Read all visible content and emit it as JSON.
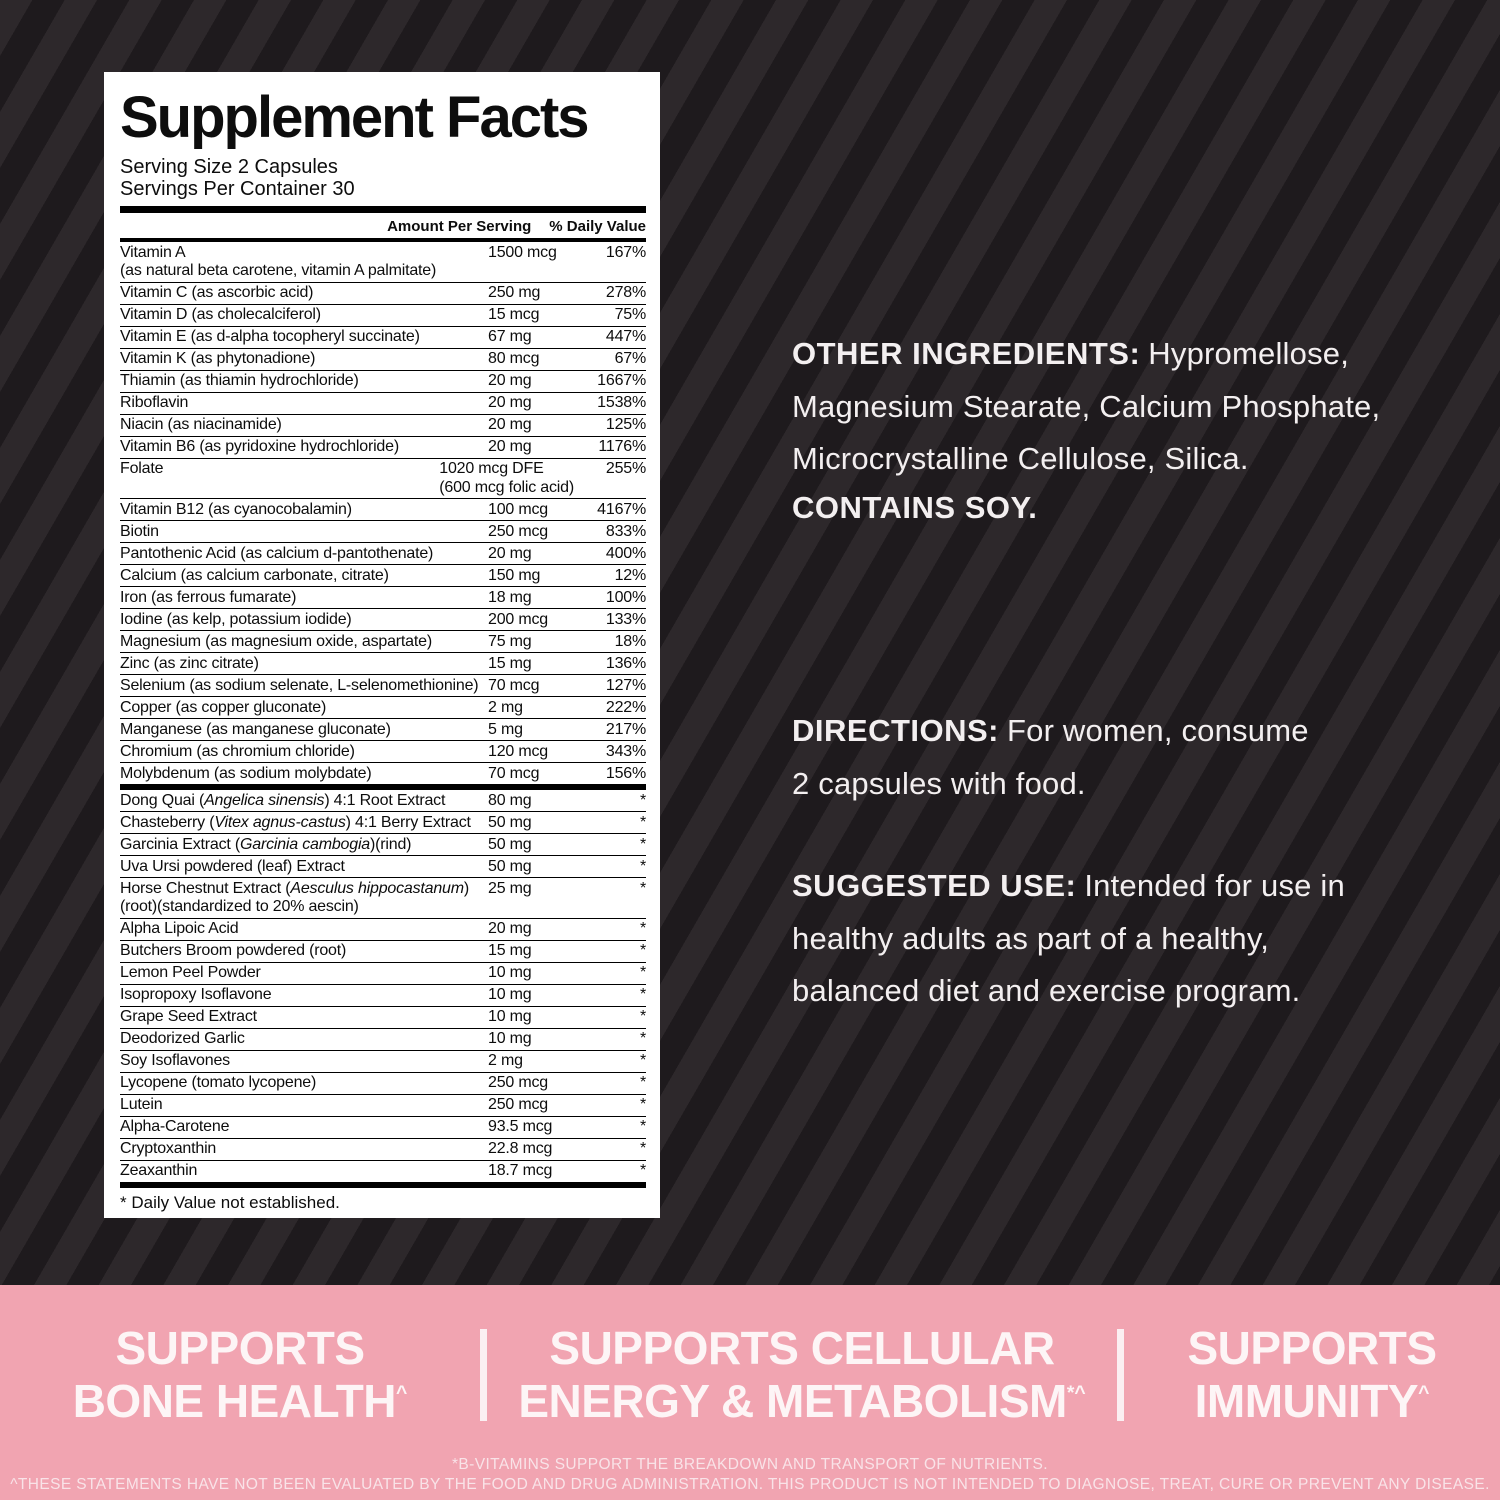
{
  "facts": {
    "title": "Supplement Facts",
    "serving_size": "Serving Size 2 Capsules",
    "servings_per_container": "Servings Per Container 30",
    "col_amount": "Amount Per Serving",
    "col_dv": "% Daily Value",
    "footnote": "* Daily Value not established.",
    "rows": [
      {
        "n": "Vitamin A",
        "n2": "(as natural beta carotene, vitamin A palmitate)",
        "a": "1500 mcg",
        "d": "167%"
      },
      {
        "n": "Vitamin C (as ascorbic acid)",
        "a": "250 mg",
        "d": "278%"
      },
      {
        "n": "Vitamin D (as cholecalciferol)",
        "a": "15 mcg",
        "d": "75%"
      },
      {
        "n": "Vitamin E (as d-alpha tocopheryl succinate)",
        "a": "67 mg",
        "d": "447%"
      },
      {
        "n": "Vitamin K (as phytonadione)",
        "a": "80 mcg",
        "d": "67%"
      },
      {
        "n": "Thiamin (as thiamin hydrochloride)",
        "a": "20 mg",
        "d": "1667%"
      },
      {
        "n": "Riboflavin",
        "a": "20 mg",
        "d": "1538%"
      },
      {
        "n": "Niacin (as niacinamide)",
        "a": "20 mg",
        "d": "125%"
      },
      {
        "n": "Vitamin B6 (as pyridoxine hydrochloride)",
        "a": "20 mg",
        "d": "1176%"
      },
      {
        "n": "Folate",
        "a": "1020 mcg DFE",
        "a2": "(600 mcg folic acid)",
        "d": "255%"
      },
      {
        "n": "Vitamin B12 (as cyanocobalamin)",
        "a": "100 mcg",
        "d": "4167%"
      },
      {
        "n": "Biotin",
        "a": "250 mcg",
        "d": "833%"
      },
      {
        "n": "Pantothenic Acid (as calcium d-pantothenate)",
        "a": "20 mg",
        "d": "400%"
      },
      {
        "n": "Calcium (as calcium carbonate, citrate)",
        "a": "150 mg",
        "d": "12%"
      },
      {
        "n": "Iron (as ferrous fumarate)",
        "a": "18 mg",
        "d": "100%"
      },
      {
        "n": "Iodine (as kelp, potassium iodide)",
        "a": "200 mcg",
        "d": "133%"
      },
      {
        "n": "Magnesium (as magnesium oxide, aspartate)",
        "a": "75 mg",
        "d": "18%"
      },
      {
        "n": "Zinc (as zinc citrate)",
        "a": "15 mg",
        "d": "136%"
      },
      {
        "n": "Selenium (as sodium selenate, L-selenomethionine)",
        "a": "70 mcg",
        "d": "127%"
      },
      {
        "n": "Copper (as copper gluconate)",
        "a": "2 mg",
        "d": "222%"
      },
      {
        "n": "Manganese (as manganese gluconate)",
        "a": "5 mg",
        "d": "217%"
      },
      {
        "n": "Chromium (as chromium chloride)",
        "a": "120 mcg",
        "d": "343%"
      },
      {
        "n": "Molybdenum (as sodium molybdate)",
        "a": "70 mcg",
        "d": "156%",
        "thick": true
      },
      {
        "pre": "Dong Quai (",
        "it": "Angelica sinensis",
        "post": ") 4:1 Root Extract",
        "a": "80 mg",
        "d": "*"
      },
      {
        "pre": "Chasteberry (",
        "it": "Vitex agnus-castus",
        "post": ") 4:1 Berry Extract",
        "a": "50 mg",
        "d": "*"
      },
      {
        "pre": "Garcinia Extract (",
        "it": "Garcinia cambogia",
        "post": ")(rind)",
        "a": "50 mg",
        "d": "*"
      },
      {
        "n": "Uva Ursi powdered (leaf) Extract",
        "a": "50 mg",
        "d": "*"
      },
      {
        "pre": "Horse Chestnut Extract (",
        "it": "Aesculus hippocastanum",
        "post": ")",
        "n2": "(root)(standardized to 20% aescin)",
        "a": "25 mg",
        "d": "*"
      },
      {
        "n": "Alpha Lipoic Acid",
        "a": "20 mg",
        "d": "*"
      },
      {
        "n": "Butchers Broom powdered (root)",
        "a": "15 mg",
        "d": "*"
      },
      {
        "n": "Lemon Peel Powder",
        "a": "10 mg",
        "d": "*"
      },
      {
        "n": "Isopropoxy Isoflavone",
        "a": "10 mg",
        "d": "*"
      },
      {
        "n": "Grape Seed Extract",
        "a": "10 mg",
        "d": "*"
      },
      {
        "n": "Deodorized Garlic",
        "a": "10 mg",
        "d": "*"
      },
      {
        "n": "Soy Isoflavones",
        "a": "2 mg",
        "d": "*"
      },
      {
        "n": "Lycopene (tomato lycopene)",
        "a": "250 mcg",
        "d": "*"
      },
      {
        "n": "Lutein",
        "a": "250 mcg",
        "d": "*"
      },
      {
        "n": "Alpha-Carotene",
        "a": "93.5 mcg",
        "d": "*"
      },
      {
        "n": "Cryptoxanthin",
        "a": "22.8 mcg",
        "d": "*"
      },
      {
        "n": "Zeaxanthin",
        "a": "18.7 mcg",
        "d": "*",
        "thick": true
      }
    ]
  },
  "right_panel": {
    "other_ingredients": {
      "label": "OTHER INGREDIENTS:",
      "first_line_rest": "Hypromellose,",
      "lines": [
        "Magnesium Stearate, Calcium Phosphate,",
        "Microcrystalline Cellulose, Silica."
      ]
    },
    "contains": "CONTAINS SOY.",
    "directions": {
      "label": "DIRECTIONS:",
      "first_line_rest": "For women, consume",
      "lines": [
        "2 capsules with food."
      ]
    },
    "suggested_use": {
      "label": "SUGGESTED USE:",
      "first_line_rest": "Intended for use in",
      "lines": [
        "healthy adults as part of a healthy,",
        "balanced diet and exercise program."
      ]
    }
  },
  "claims_band": {
    "claims": [
      {
        "line1": "SUPPORTS",
        "line2": "BONE HEALTH",
        "sup": "^"
      },
      {
        "line1": "SUPPORTS CELLULAR",
        "line2": "ENERGY & METABOLISM",
        "sup": "*^"
      },
      {
        "line1": "SUPPORTS",
        "line2": "IMMUNITY",
        "sup": "^"
      }
    ],
    "footnotes": [
      "*B-VITAMINS SUPPORT THE BREAKDOWN AND TRANSPORT OF NUTRIENTS.",
      "^THESE STATEMENTS HAVE NOT BEEN EVALUATED BY THE FOOD AND DRUG ADMINISTRATION. THIS PRODUCT IS NOT INTENDED TO DIAGNOSE, TREAT, CURE OR PREVENT ANY DISEASE."
    ]
  },
  "colors": {
    "pink_band": "#F1A4B1",
    "background": "#262124",
    "panel": "#FFFFFF",
    "ink": "#0D0D0D",
    "light_text": "#F3EFF0"
  }
}
